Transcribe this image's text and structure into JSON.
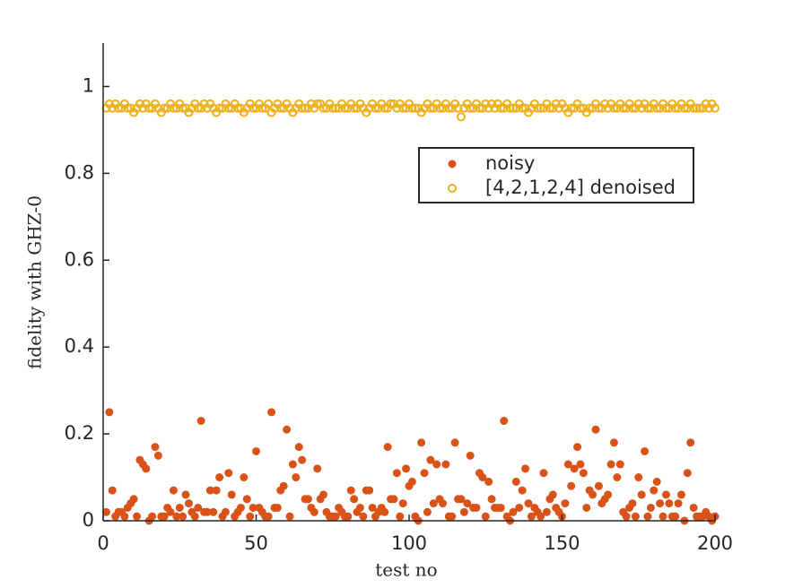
{
  "chart_data": {
    "type": "scatter",
    "xlabel": "test no",
    "ylabel": "fidelity with GHZ-0",
    "xlim": [
      0,
      200
    ],
    "xticks": [
      0,
      50,
      100,
      150,
      200
    ],
    "ylim": [
      0,
      1.1
    ],
    "yticks": [
      0,
      0.2,
      0.4,
      0.6,
      0.8,
      1
    ],
    "legend": "upper right",
    "x": [
      1,
      2,
      3,
      4,
      5,
      6,
      7,
      8,
      9,
      10,
      11,
      12,
      13,
      14,
      15,
      16,
      17,
      18,
      19,
      20,
      21,
      22,
      23,
      24,
      25,
      26,
      27,
      28,
      29,
      30,
      31,
      32,
      33,
      34,
      35,
      36,
      37,
      38,
      39,
      40,
      41,
      42,
      43,
      44,
      45,
      46,
      47,
      48,
      49,
      50,
      51,
      52,
      53,
      54,
      55,
      56,
      57,
      58,
      59,
      60,
      61,
      62,
      63,
      64,
      65,
      66,
      67,
      68,
      69,
      70,
      71,
      72,
      73,
      74,
      75,
      76,
      77,
      78,
      79,
      80,
      81,
      82,
      83,
      84,
      85,
      86,
      87,
      88,
      89,
      90,
      91,
      92,
      93,
      94,
      95,
      96,
      97,
      98,
      99,
      100,
      101,
      102,
      103,
      104,
      105,
      106,
      107,
      108,
      109,
      110,
      111,
      112,
      113,
      114,
      115,
      116,
      117,
      118,
      119,
      120,
      121,
      122,
      123,
      124,
      125,
      126,
      127,
      128,
      129,
      130,
      131,
      132,
      133,
      134,
      135,
      136,
      137,
      138,
      139,
      140,
      141,
      142,
      143,
      144,
      145,
      146,
      147,
      148,
      149,
      150,
      151,
      152,
      153,
      154,
      155,
      156,
      157,
      158,
      159,
      160,
      161,
      162,
      163,
      164,
      165,
      166,
      167,
      168,
      169,
      170,
      171,
      172,
      173,
      174,
      175,
      176,
      177,
      178,
      179,
      180,
      181,
      182,
      183,
      184,
      185,
      186,
      187,
      188,
      189,
      190,
      191,
      192,
      193,
      194,
      195,
      196,
      197,
      198,
      199,
      200
    ],
    "series": [
      {
        "name": "noisy",
        "color": "#d95319",
        "filled": true,
        "values": [
          0.02,
          0.25,
          0.07,
          0.01,
          0.02,
          0.02,
          0.01,
          0.03,
          0.04,
          0.05,
          0.01,
          0.14,
          0.13,
          0.12,
          0.0,
          0.01,
          0.17,
          0.15,
          0.01,
          0.01,
          0.03,
          0.02,
          0.07,
          0.01,
          0.03,
          0.01,
          0.06,
          0.04,
          0.02,
          0.01,
          0.03,
          0.23,
          0.02,
          0.02,
          0.07,
          0.02,
          0.07,
          0.1,
          0.01,
          0.02,
          0.11,
          0.06,
          0.01,
          0.02,
          0.03,
          0.1,
          0.05,
          0.01,
          0.03,
          0.16,
          0.03,
          0.02,
          0.01,
          0.01,
          0.25,
          0.03,
          0.03,
          0.07,
          0.08,
          0.21,
          0.01,
          0.13,
          0.1,
          0.17,
          0.14,
          0.05,
          0.05,
          0.03,
          0.02,
          0.12,
          0.05,
          0.06,
          0.02,
          0.01,
          0.01,
          0.01,
          0.03,
          0.02,
          0.01,
          0.01,
          0.07,
          0.05,
          0.02,
          0.03,
          0.01,
          0.07,
          0.07,
          0.03,
          0.01,
          0.02,
          0.03,
          0.02,
          0.17,
          0.05,
          0.05,
          0.11,
          0.01,
          0.04,
          0.12,
          0.08,
          0.09,
          0.01,
          0.0,
          0.18,
          0.11,
          0.02,
          0.14,
          0.04,
          0.13,
          0.05,
          0.04,
          0.13,
          0.01,
          0.01,
          0.18,
          0.05,
          0.05,
          0.02,
          0.04,
          0.15,
          0.03,
          0.03,
          0.11,
          0.1,
          0.01,
          0.09,
          0.05,
          0.03,
          0.03,
          0.03,
          0.23,
          0.01,
          0.0,
          0.02,
          0.09,
          0.03,
          0.07,
          0.12,
          0.04,
          0.01,
          0.03,
          0.02,
          0.01,
          0.11,
          0.02,
          0.05,
          0.06,
          0.03,
          0.02,
          0.01,
          0.04,
          0.13,
          0.08,
          0.12,
          0.17,
          0.13,
          0.11,
          0.03,
          0.07,
          0.06,
          0.21,
          0.08,
          0.04,
          0.05,
          0.06,
          0.13,
          0.18,
          0.1,
          0.13,
          0.02,
          0.01,
          0.03,
          0.04,
          0.01,
          0.1,
          0.06,
          0.16,
          0.01,
          0.03,
          0.07,
          0.09,
          0.04,
          0.01,
          0.06,
          0.04,
          0.01,
          0.01,
          0.04,
          0.06,
          0.0,
          0.11,
          0.18,
          0.03,
          0.01,
          0.01,
          0.01,
          0.02,
          0.01,
          0.0,
          0.01
        ]
      },
      {
        "name": "[4,2,1,2,4] denoised",
        "color": "#edb120",
        "filled": false,
        "values": [
          0.95,
          0.96,
          0.95,
          0.96,
          0.95,
          0.95,
          0.96,
          0.95,
          0.95,
          0.94,
          0.95,
          0.96,
          0.95,
          0.96,
          0.95,
          0.95,
          0.96,
          0.95,
          0.94,
          0.95,
          0.95,
          0.96,
          0.95,
          0.95,
          0.96,
          0.95,
          0.95,
          0.94,
          0.95,
          0.96,
          0.95,
          0.95,
          0.96,
          0.95,
          0.96,
          0.95,
          0.94,
          0.95,
          0.95,
          0.96,
          0.95,
          0.95,
          0.96,
          0.95,
          0.95,
          0.94,
          0.95,
          0.96,
          0.95,
          0.95,
          0.96,
          0.95,
          0.95,
          0.96,
          0.94,
          0.95,
          0.96,
          0.95,
          0.95,
          0.96,
          0.95,
          0.94,
          0.95,
          0.96,
          0.95,
          0.95,
          0.95,
          0.96,
          0.95,
          0.96,
          0.96,
          0.95,
          0.95,
          0.96,
          0.95,
          0.95,
          0.95,
          0.96,
          0.95,
          0.95,
          0.96,
          0.95,
          0.95,
          0.96,
          0.95,
          0.94,
          0.95,
          0.96,
          0.95,
          0.95,
          0.96,
          0.95,
          0.95,
          0.96,
          0.96,
          0.95,
          0.96,
          0.95,
          0.95,
          0.96,
          0.95,
          0.95,
          0.95,
          0.94,
          0.95,
          0.96,
          0.95,
          0.95,
          0.96,
          0.95,
          0.95,
          0.96,
          0.95,
          0.95,
          0.96,
          0.95,
          0.93,
          0.95,
          0.96,
          0.95,
          0.95,
          0.96,
          0.95,
          0.95,
          0.96,
          0.95,
          0.96,
          0.95,
          0.96,
          0.95,
          0.95,
          0.96,
          0.95,
          0.95,
          0.95,
          0.96,
          0.95,
          0.95,
          0.94,
          0.95,
          0.96,
          0.95,
          0.95,
          0.95,
          0.96,
          0.95,
          0.95,
          0.96,
          0.95,
          0.96,
          0.95,
          0.94,
          0.95,
          0.95,
          0.96,
          0.95,
          0.95,
          0.94,
          0.95,
          0.95,
          0.96,
          0.95,
          0.95,
          0.96,
          0.95,
          0.96,
          0.95,
          0.95,
          0.96,
          0.95,
          0.95,
          0.96,
          0.95,
          0.95,
          0.96,
          0.95,
          0.96,
          0.95,
          0.95,
          0.96,
          0.95,
          0.95,
          0.96,
          0.95,
          0.95,
          0.96,
          0.95,
          0.95,
          0.96,
          0.95,
          0.95,
          0.96,
          0.95,
          0.95,
          0.95,
          0.95,
          0.96,
          0.95,
          0.96,
          0.95
        ]
      }
    ]
  }
}
